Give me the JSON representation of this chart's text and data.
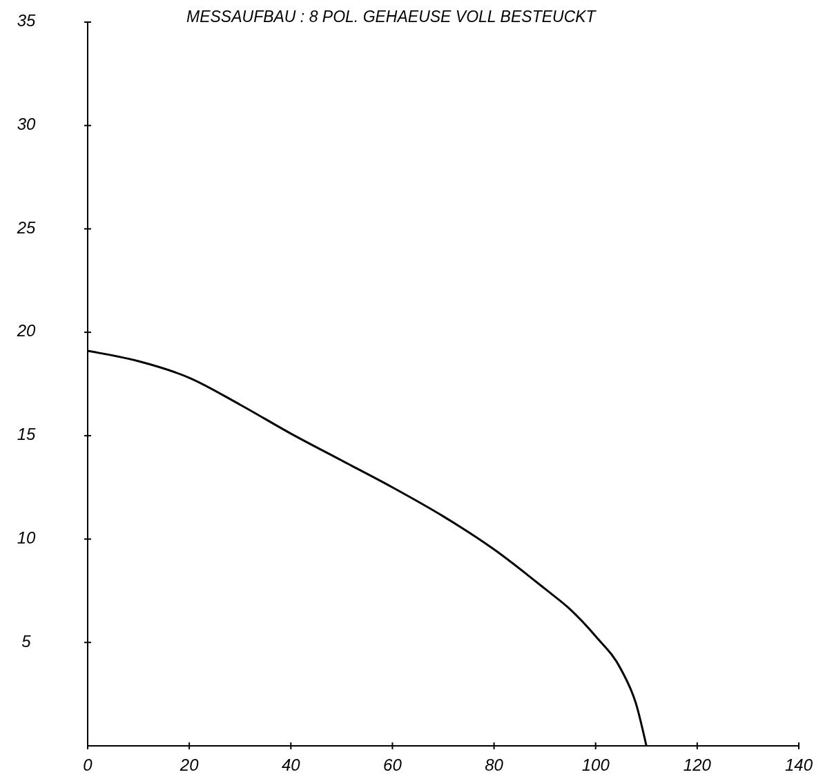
{
  "chart_data": {
    "type": "line",
    "title": "MESSAUFBAU : 8 POL. GEHAEUSE VOLL BESTEUCKT",
    "x": [
      0,
      10,
      20,
      30,
      40,
      50,
      60,
      70,
      80,
      90,
      95,
      100,
      105,
      108,
      110
    ],
    "series": [
      {
        "color": "#000000",
        "values": [
          19.1,
          18.6,
          17.8,
          16.5,
          15.1,
          13.8,
          12.5,
          11.1,
          9.5,
          7.6,
          6.6,
          5.3,
          3.7,
          2,
          0
        ]
      }
    ],
    "xlim": [
      0,
      140
    ],
    "xticks": [
      0,
      20,
      40,
      60,
      80,
      100,
      120,
      140
    ],
    "ylim": [
      0,
      35
    ],
    "yticks": [
      5,
      10,
      15,
      20,
      25,
      30,
      35
    ],
    "line_style": "solid"
  }
}
